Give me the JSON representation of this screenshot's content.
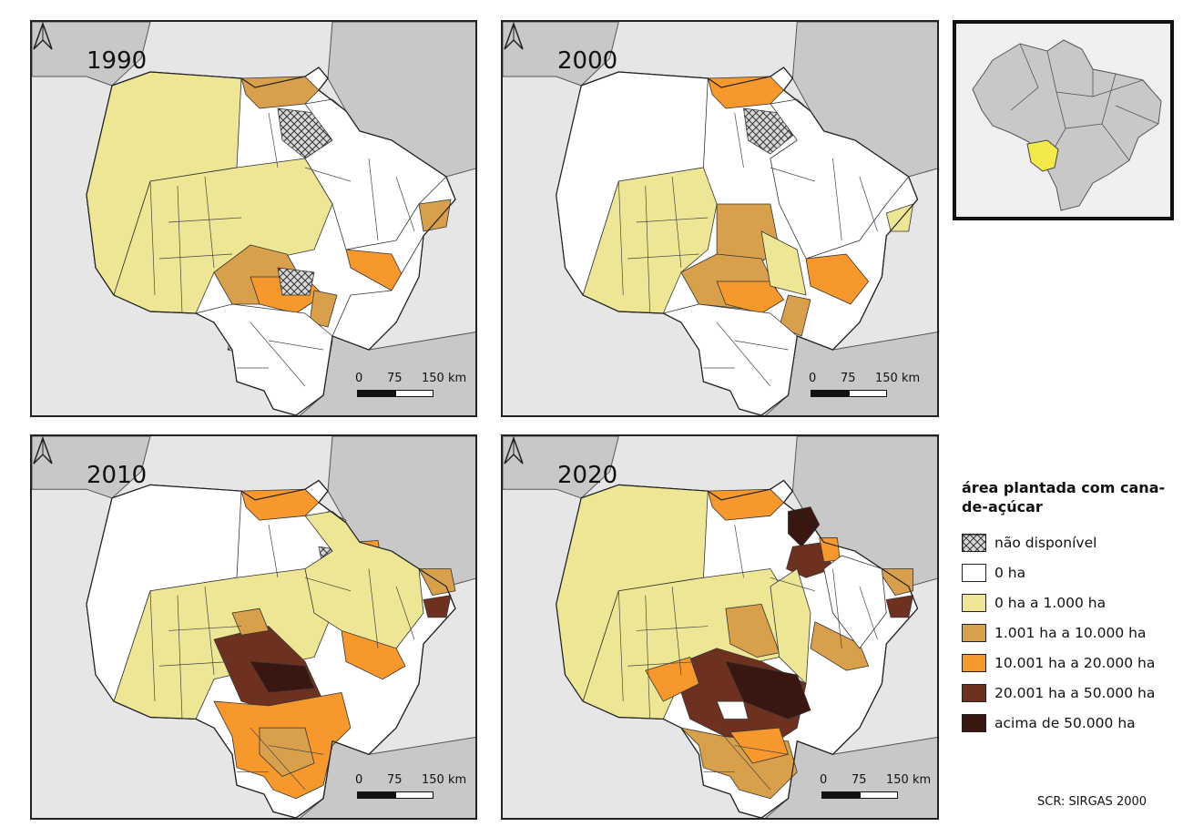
{
  "panels": [
    {
      "year": "1990"
    },
    {
      "year": "2000"
    },
    {
      "year": "2010"
    },
    {
      "year": "2020"
    }
  ],
  "scale_bar": {
    "labels": [
      "0",
      "75",
      "150 km"
    ]
  },
  "legend": {
    "title": "área plantada com cana-de-açúcar",
    "items": [
      {
        "label": "não disponível",
        "color": "#ffffff",
        "pattern": "crosshatch"
      },
      {
        "label": "0 ha",
        "color": "#ffffff"
      },
      {
        "label": "0 ha a 1.000 ha",
        "color": "#ede795"
      },
      {
        "label": "1.001 ha a 10.000 ha",
        "color": "#d8a04a"
      },
      {
        "label": "10.001 ha a 20.000 ha",
        "color": "#f7982d"
      },
      {
        "label": "20.001 ha a 50.000 ha",
        "color": "#6e3120"
      },
      {
        "label": "acima de 50.000 ha",
        "color": "#3a1610"
      }
    ]
  },
  "crs_note": "SCR: SIRGAS 2000",
  "colors": {
    "background": "#e6e6e6",
    "neighbor": "#c8c8c8",
    "none": "#ffffff",
    "low": "#ede795",
    "mid": "#d8a04a",
    "high": "#f7982d",
    "very_high": "#6e3120",
    "top": "#3a1610",
    "highlight_state": "#f4e94a"
  }
}
